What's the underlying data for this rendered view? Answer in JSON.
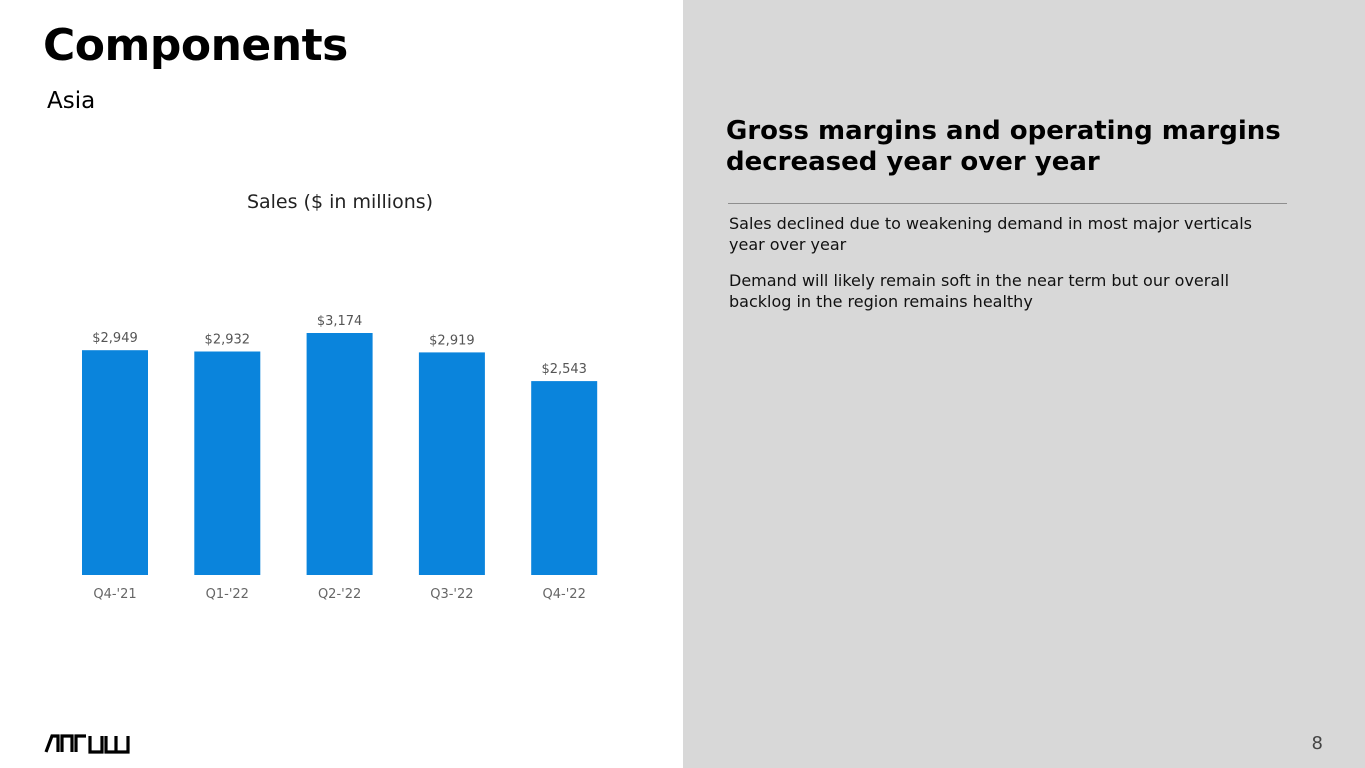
{
  "slide": {
    "title": "Components",
    "subtitle": "Asia",
    "page_number": "8"
  },
  "brand": {
    "logo_text": "ARROW",
    "accent_color": "#0a84dc",
    "panel_color": "#d8d8d8"
  },
  "summary": {
    "headline": "Gross margins and operating margins decreased year over year",
    "bullets": [
      "Sales declined due to weakening demand in most major verticals year over year",
      "Demand will likely remain soft in the near term but our overall backlog in the region remains healthy"
    ]
  },
  "chart_data": {
    "type": "bar",
    "title": "Sales ($ in millions)",
    "categories": [
      "Q4-'21",
      "Q1-'22",
      "Q2-'22",
      "Q3-'22",
      "Q4-'22"
    ],
    "values": [
      2949,
      2932,
      3174,
      2919,
      2543
    ],
    "value_labels": [
      "$2,949",
      "$2,932",
      "$3,174",
      "$2,919",
      "$2,543"
    ],
    "ylim": [
      0,
      3174
    ],
    "grid": false,
    "legend": "none",
    "bar_color": "#0a84dc"
  }
}
